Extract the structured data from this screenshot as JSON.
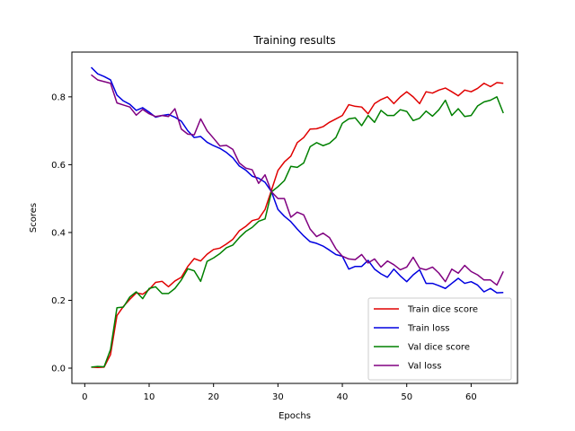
{
  "chart_data": {
    "type": "line",
    "title": "Training results",
    "xlabel": "Epochs",
    "ylabel": "Scores",
    "xlim": [
      -2,
      67.2
    ],
    "ylim": [
      -0.045,
      0.932
    ],
    "xticks": [
      0,
      10,
      20,
      30,
      40,
      50,
      60
    ],
    "yticks": [
      0.0,
      0.2,
      0.4,
      0.6,
      0.8
    ],
    "grid": false,
    "legend_position": "lower-right",
    "x": [
      1,
      2,
      3,
      4,
      5,
      6,
      7,
      8,
      9,
      10,
      11,
      12,
      13,
      14,
      15,
      16,
      17,
      18,
      19,
      20,
      21,
      22,
      23,
      24,
      25,
      26,
      27,
      28,
      29,
      30,
      31,
      32,
      33,
      34,
      35,
      36,
      37,
      38,
      39,
      40,
      41,
      42,
      43,
      44,
      45,
      46,
      47,
      48,
      49,
      50,
      51,
      52,
      53,
      54,
      55,
      56,
      57,
      58,
      59,
      60,
      61,
      62,
      63,
      64,
      65
    ],
    "series": [
      {
        "name": "Train dice score",
        "color": "#e00000",
        "values": [
          0.003,
          0.002,
          0.003,
          0.04,
          0.155,
          0.182,
          0.203,
          0.222,
          0.218,
          0.232,
          0.253,
          0.256,
          0.24,
          0.257,
          0.268,
          0.3,
          0.323,
          0.316,
          0.336,
          0.35,
          0.354,
          0.366,
          0.38,
          0.405,
          0.418,
          0.435,
          0.44,
          0.468,
          0.525,
          0.583,
          0.608,
          0.625,
          0.665,
          0.68,
          0.705,
          0.706,
          0.712,
          0.725,
          0.735,
          0.745,
          0.777,
          0.772,
          0.77,
          0.75,
          0.78,
          0.792,
          0.8,
          0.78,
          0.8,
          0.815,
          0.8,
          0.78,
          0.815,
          0.811,
          0.82,
          0.826,
          0.815,
          0.803,
          0.82,
          0.815,
          0.825,
          0.84,
          0.83,
          0.842,
          0.84
        ]
      },
      {
        "name": "Train loss",
        "color": "#0000e0",
        "values": [
          0.887,
          0.868,
          0.86,
          0.85,
          0.805,
          0.788,
          0.778,
          0.76,
          0.768,
          0.755,
          0.74,
          0.745,
          0.748,
          0.74,
          0.728,
          0.7,
          0.68,
          0.683,
          0.666,
          0.656,
          0.648,
          0.636,
          0.62,
          0.596,
          0.584,
          0.566,
          0.56,
          0.548,
          0.52,
          0.468,
          0.448,
          0.432,
          0.41,
          0.39,
          0.373,
          0.368,
          0.36,
          0.348,
          0.335,
          0.33,
          0.292,
          0.3,
          0.3,
          0.318,
          0.292,
          0.278,
          0.268,
          0.292,
          0.272,
          0.255,
          0.275,
          0.29,
          0.25,
          0.25,
          0.243,
          0.235,
          0.25,
          0.265,
          0.25,
          0.255,
          0.245,
          0.225,
          0.235,
          0.222,
          0.223
        ]
      },
      {
        "name": "Val dice score",
        "color": "#008000",
        "values": [
          0.003,
          0.005,
          0.004,
          0.055,
          0.178,
          0.18,
          0.21,
          0.225,
          0.205,
          0.235,
          0.24,
          0.22,
          0.22,
          0.235,
          0.26,
          0.293,
          0.287,
          0.256,
          0.315,
          0.325,
          0.338,
          0.355,
          0.363,
          0.385,
          0.403,
          0.415,
          0.433,
          0.44,
          0.52,
          0.535,
          0.553,
          0.595,
          0.592,
          0.605,
          0.653,
          0.665,
          0.656,
          0.663,
          0.68,
          0.722,
          0.735,
          0.738,
          0.715,
          0.745,
          0.725,
          0.76,
          0.745,
          0.745,
          0.762,
          0.757,
          0.73,
          0.737,
          0.758,
          0.743,
          0.762,
          0.79,
          0.745,
          0.765,
          0.742,
          0.745,
          0.773,
          0.785,
          0.79,
          0.8,
          0.752
        ]
      },
      {
        "name": "Val loss",
        "color": "#800080",
        "values": [
          0.865,
          0.85,
          0.845,
          0.84,
          0.782,
          0.776,
          0.77,
          0.746,
          0.763,
          0.75,
          0.742,
          0.745,
          0.742,
          0.765,
          0.705,
          0.69,
          0.688,
          0.735,
          0.7,
          0.678,
          0.655,
          0.657,
          0.645,
          0.605,
          0.59,
          0.585,
          0.545,
          0.57,
          0.52,
          0.5,
          0.5,
          0.445,
          0.46,
          0.452,
          0.41,
          0.388,
          0.398,
          0.385,
          0.352,
          0.33,
          0.322,
          0.32,
          0.335,
          0.31,
          0.322,
          0.298,
          0.316,
          0.305,
          0.29,
          0.298,
          0.327,
          0.295,
          0.29,
          0.298,
          0.28,
          0.255,
          0.292,
          0.28,
          0.303,
          0.285,
          0.275,
          0.26,
          0.26,
          0.245,
          0.285
        ]
      }
    ]
  }
}
